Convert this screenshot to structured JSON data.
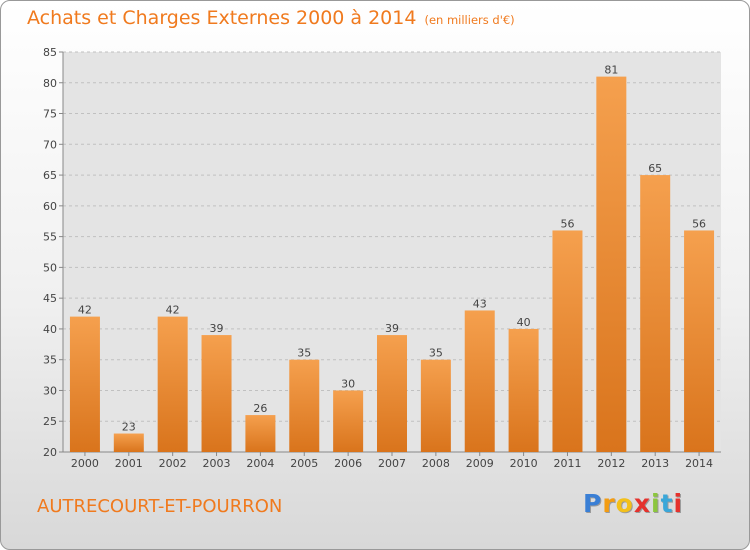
{
  "title": "Achats et Charges Externes 2000 à 2014",
  "unit": "(en milliers d'€)",
  "city": "AUTRECOURT-ET-POURRON",
  "logo": {
    "letters": [
      "P",
      "r",
      "o",
      "x",
      "i",
      "t",
      "i"
    ],
    "colors": [
      "#3a7fd5",
      "#f39c12",
      "#f3c01a",
      "#e5322d",
      "#8cc63e",
      "#3aa7d9",
      "#e5322d"
    ]
  },
  "colors": {
    "accent": "#f07a1e",
    "bar_top": "#f5a04e",
    "bar_bottom": "#d9741c"
  },
  "chart_data": {
    "type": "bar",
    "categories": [
      "2000",
      "2001",
      "2002",
      "2003",
      "2004",
      "2005",
      "2006",
      "2007",
      "2008",
      "2009",
      "2010",
      "2011",
      "2012",
      "2013",
      "2014"
    ],
    "values": [
      42,
      23,
      42,
      39,
      26,
      35,
      30,
      39,
      35,
      43,
      40,
      56,
      81,
      65,
      56
    ],
    "ylim": [
      20,
      85
    ],
    "yticks": [
      20,
      25,
      30,
      35,
      40,
      45,
      50,
      55,
      60,
      65,
      70,
      75,
      80,
      85
    ],
    "grid": true,
    "data_labels": true
  }
}
